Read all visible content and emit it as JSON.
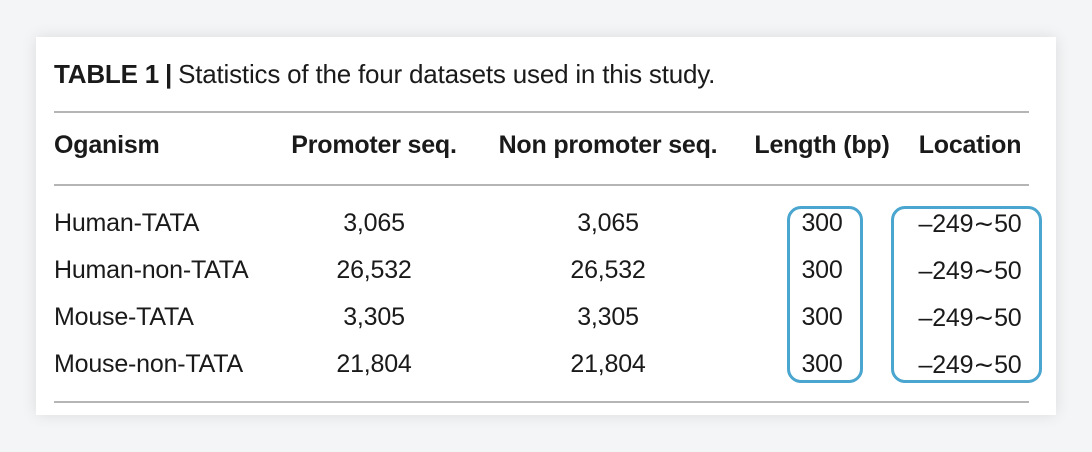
{
  "table": {
    "caption_tag": "TABLE 1",
    "caption_sep": "|",
    "caption_text": "Statistics of the four datasets used in this study.",
    "headers": {
      "organism": "Oganism",
      "promoter": "Promoter seq.",
      "non_promoter": "Non promoter seq.",
      "length": "Length (bp)",
      "location": "Location"
    },
    "rows": [
      {
        "organism": "Human-TATA",
        "promoter": "3,065",
        "non_promoter": "3,065",
        "length": "300",
        "location": "–249∼50"
      },
      {
        "organism": "Human-non-TATA",
        "promoter": "26,532",
        "non_promoter": "26,532",
        "length": "300",
        "location": "–249∼50"
      },
      {
        "organism": "Mouse-TATA",
        "promoter": "3,305",
        "non_promoter": "3,305",
        "length": "300",
        "location": "–249∼50"
      },
      {
        "organism": "Mouse-non-TATA",
        "promoter": "21,804",
        "non_promoter": "21,804",
        "length": "300",
        "location": "–249∼50"
      }
    ]
  },
  "colors": {
    "highlight": "#4aa5cf",
    "rule": "#b5b5b5",
    "text": "#1a1a1a"
  }
}
